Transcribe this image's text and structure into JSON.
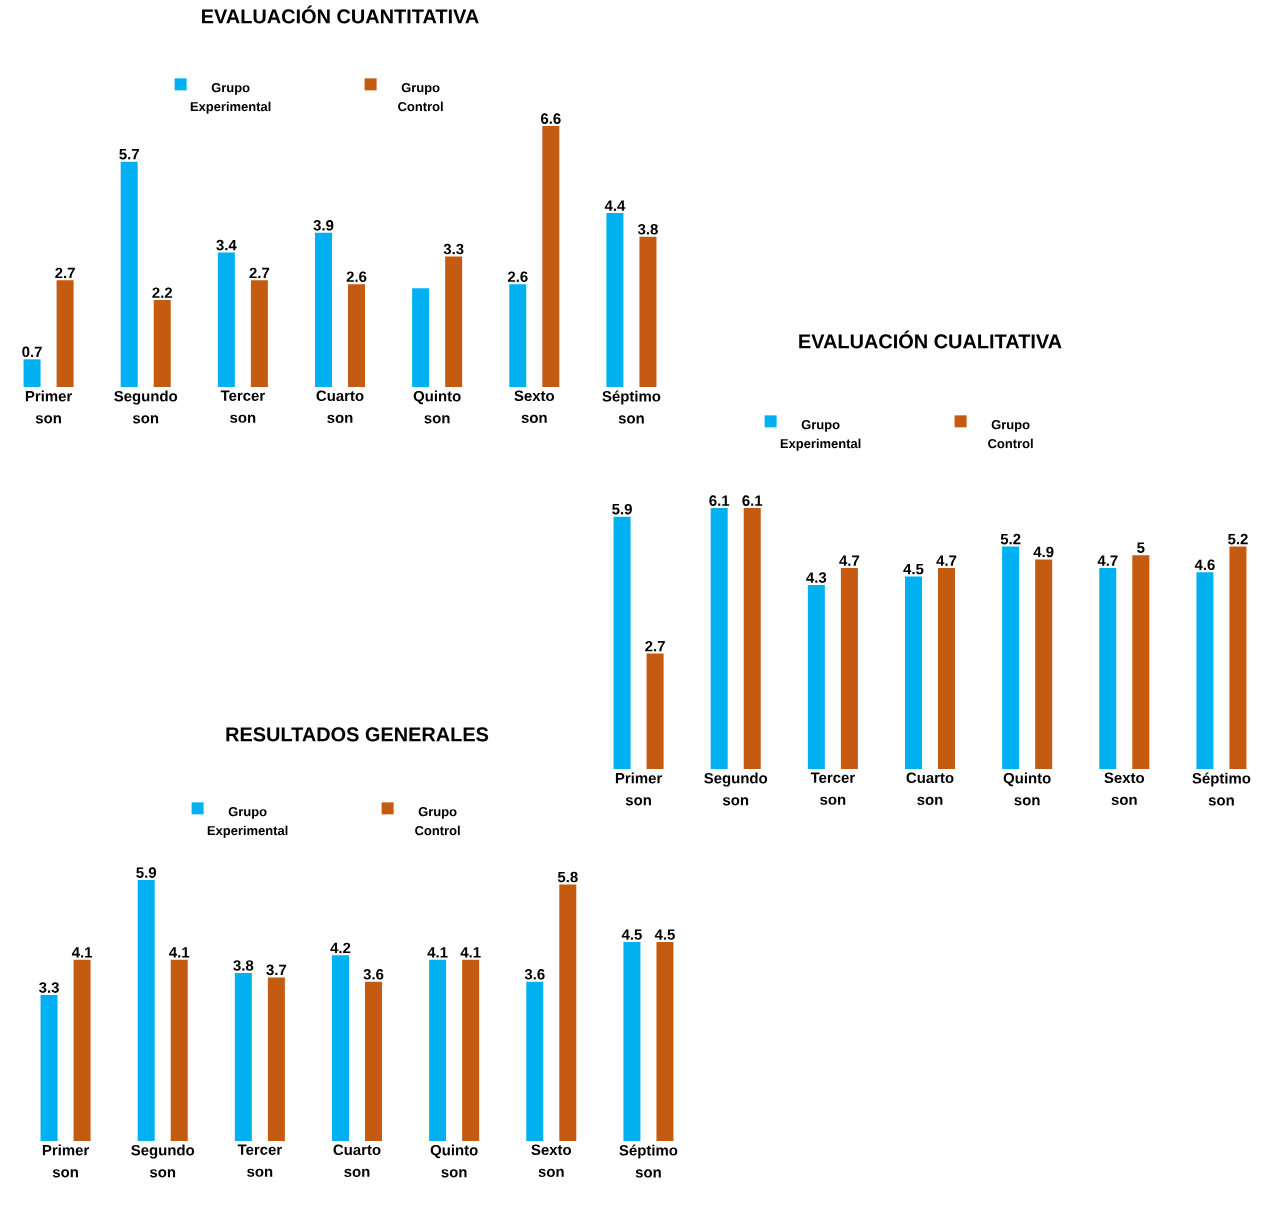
{
  "chart_data": [
    {
      "type": "bar",
      "title": "EVALUACIÓN CUANTITATIVA",
      "categories": [
        "Primer son",
        "Segundo son",
        "Tercer son",
        "Cuarto son",
        "Quinto son",
        "Sexto son",
        "Séptimo son"
      ],
      "legend": "top",
      "series": [
        {
          "name": "Grupo Experimental",
          "color": "#00b0f0",
          "values": [
            0.7,
            5.7,
            3.4,
            3.9,
            2.5,
            2.6,
            4.4
          ],
          "value_labels": [
            "0.7",
            "5.7",
            "3.4",
            "3.9",
            null,
            "2.6",
            "4.4"
          ]
        },
        {
          "name": "Grupo Control",
          "color": "#c55a11",
          "values": [
            2.7,
            2.2,
            2.7,
            2.6,
            3.3,
            6.6,
            3.8
          ],
          "value_labels": [
            "2.7",
            "2.2",
            "2.7",
            "2.6",
            "3.3",
            "6.6",
            "3.8"
          ]
        }
      ]
    },
    {
      "type": "bar",
      "title": "EVALUACIÓN CUALITATIVA",
      "categories": [
        "Primer son",
        "Segundo son",
        "Tercer son",
        "Cuarto son",
        "Quinto son",
        "Sexto son",
        "Séptimo son"
      ],
      "legend": "top",
      "data_labels": true,
      "series": [
        {
          "name": "Grupo Experimental",
          "color": "#00b0f0",
          "values": [
            5.9,
            6.1,
            4.3,
            4.5,
            5.2,
            4.7,
            4.6
          ]
        },
        {
          "name": "Grupo Control",
          "color": "#c55a11",
          "values": [
            2.7,
            6.1,
            4.7,
            4.7,
            4.9,
            5,
            5.2
          ]
        }
      ]
    },
    {
      "type": "bar",
      "title": "RESULTADOS GENERALES",
      "categories": [
        "Primer son",
        "Segundo son",
        "Tercer son",
        "Cuarto son",
        "Quinto son",
        "Sexto son",
        "Séptimo son"
      ],
      "legend": "top",
      "data_labels": true,
      "series": [
        {
          "name": "Grupo Experimental",
          "color": "#00b0f0",
          "values": [
            3.3,
            5.9,
            3.8,
            4.2,
            4.1,
            3.6,
            4.5
          ]
        },
        {
          "name": "Grupo Control",
          "color": "#c55a11",
          "values": [
            4.1,
            4.1,
            3.7,
            3.6,
            4.1,
            5.8,
            4.5
          ]
        }
      ]
    }
  ]
}
